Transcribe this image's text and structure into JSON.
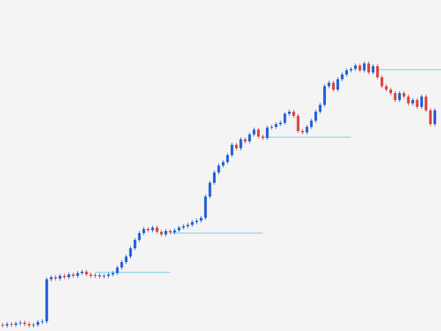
{
  "chart_data": {
    "type": "candlestick",
    "up_color": "#1f5fd6",
    "down_color": "#d9423f",
    "level_color": "#5bc8e8",
    "background": "#f4f4f4",
    "xlim": [
      -0.6,
      99.4
    ],
    "ylim": [
      0,
      480
    ],
    "x": [
      0,
      1,
      2,
      3,
      4,
      5,
      6,
      7,
      8,
      9,
      10,
      11,
      12,
      13,
      14,
      15,
      16,
      17,
      18,
      19,
      20,
      21,
      22,
      23,
      24,
      25,
      26,
      27,
      28,
      29,
      30,
      31,
      32,
      33,
      34,
      35,
      36,
      37,
      38,
      39,
      40,
      41,
      42,
      43,
      44,
      45,
      46,
      47,
      48,
      49,
      50,
      51,
      52,
      53,
      54,
      55,
      56,
      57,
      58,
      59,
      60,
      61,
      62,
      63,
      64,
      65,
      66,
      67,
      68,
      69,
      70,
      71,
      72,
      73,
      74,
      75,
      76,
      77,
      78,
      79,
      80,
      81,
      82,
      83,
      84,
      85,
      86,
      87,
      88,
      89,
      90,
      91,
      92,
      93,
      94,
      95,
      96,
      97,
      98
    ],
    "open": [
      9,
      8,
      10,
      9,
      11,
      12,
      10,
      8,
      9,
      13,
      14,
      75,
      78,
      76,
      80,
      78,
      82,
      80,
      84,
      86,
      82,
      80,
      81,
      79,
      80,
      82,
      84,
      92,
      100,
      108,
      120,
      132,
      142,
      148,
      146,
      150,
      144,
      140,
      145,
      143,
      146,
      150,
      152,
      154,
      158,
      160,
      164,
      195,
      215,
      230,
      240,
      245,
      255,
      270,
      265,
      278,
      275,
      285,
      292,
      282,
      280,
      295,
      296,
      300,
      302,
      315,
      318,
      312,
      290,
      288,
      296,
      305,
      318,
      328,
      355,
      360,
      350,
      365,
      372,
      378,
      380,
      385,
      378,
      388,
      375,
      384,
      368,
      355,
      350,
      345,
      335,
      345,
      340,
      330,
      335,
      325,
      340,
      320,
      300
    ],
    "high": [
      12,
      13,
      13,
      14,
      15,
      15,
      13,
      12,
      16,
      17,
      78,
      81,
      81,
      83,
      83,
      85,
      85,
      87,
      89,
      89,
      85,
      84,
      84,
      83,
      85,
      87,
      95,
      103,
      111,
      123,
      135,
      145,
      151,
      151,
      153,
      153,
      147,
      148,
      148,
      149,
      153,
      155,
      157,
      161,
      163,
      167,
      198,
      218,
      233,
      243,
      248,
      258,
      273,
      273,
      281,
      281,
      288,
      295,
      295,
      285,
      298,
      299,
      303,
      305,
      318,
      321,
      321,
      315,
      293,
      299,
      308,
      321,
      331,
      358,
      363,
      363,
      368,
      375,
      381,
      383,
      388,
      388,
      391,
      391,
      387,
      387,
      371,
      358,
      353,
      348,
      348,
      348,
      343,
      338,
      338,
      343,
      343,
      323,
      323
    ],
    "low": [
      5,
      5,
      6,
      6,
      8,
      7,
      5,
      5,
      6,
      10,
      11,
      72,
      73,
      73,
      75,
      75,
      77,
      77,
      81,
      79,
      77,
      77,
      76,
      76,
      77,
      79,
      81,
      89,
      97,
      105,
      117,
      129,
      139,
      143,
      143,
      141,
      137,
      137,
      140,
      140,
      143,
      147,
      149,
      151,
      155,
      157,
      161,
      192,
      212,
      227,
      237,
      242,
      252,
      262,
      262,
      272,
      272,
      282,
      279,
      277,
      277,
      292,
      293,
      297,
      299,
      312,
      309,
      287,
      285,
      285,
      293,
      302,
      315,
      325,
      352,
      347,
      347,
      362,
      369,
      375,
      377,
      375,
      375,
      372,
      372,
      365,
      352,
      347,
      342,
      332,
      332,
      337,
      327,
      327,
      322,
      322,
      317,
      297,
      297
    ],
    "close": [
      8,
      10,
      9,
      11,
      12,
      10,
      8,
      9,
      13,
      14,
      75,
      78,
      76,
      80,
      78,
      82,
      80,
      84,
      86,
      82,
      80,
      81,
      79,
      80,
      82,
      84,
      92,
      100,
      108,
      120,
      132,
      142,
      148,
      146,
      150,
      144,
      140,
      145,
      143,
      146,
      150,
      152,
      154,
      158,
      160,
      164,
      195,
      215,
      230,
      240,
      245,
      255,
      270,
      265,
      278,
      275,
      285,
      292,
      282,
      280,
      295,
      296,
      300,
      302,
      315,
      318,
      312,
      290,
      288,
      296,
      305,
      318,
      328,
      355,
      360,
      350,
      365,
      372,
      378,
      380,
      385,
      378,
      388,
      375,
      384,
      368,
      355,
      350,
      345,
      335,
      345,
      340,
      330,
      335,
      325,
      340,
      320,
      300,
      320
    ],
    "levels": [
      {
        "value": 85,
        "from": 21,
        "to": 38
      },
      {
        "value": 142,
        "from": 38,
        "to": 59
      },
      {
        "value": 281,
        "from": 59,
        "to": 79
      },
      {
        "value": 379,
        "from": 85,
        "to": 99.4
      }
    ]
  }
}
